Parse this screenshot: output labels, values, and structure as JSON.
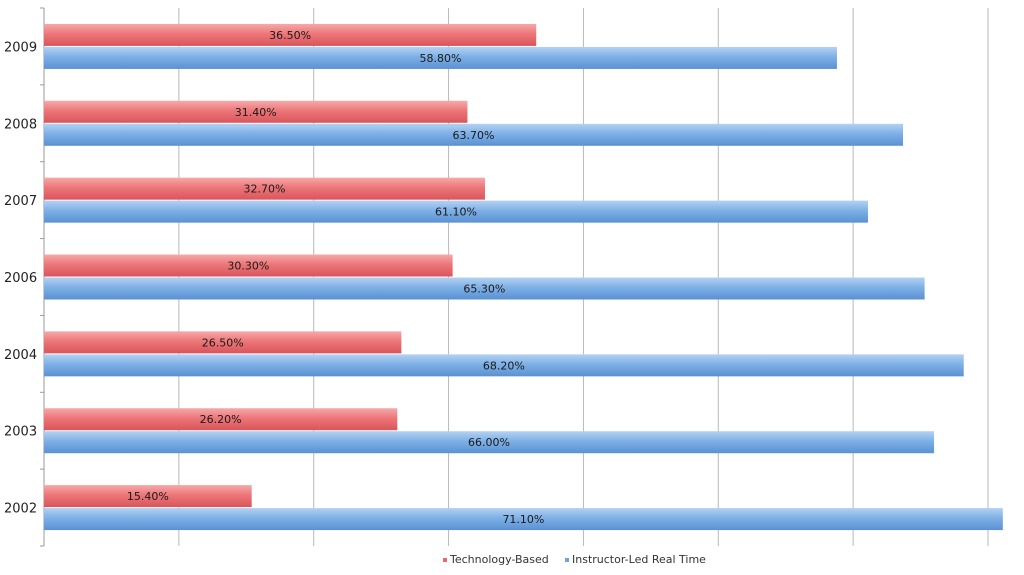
{
  "chart_data": {
    "type": "bar",
    "orientation": "horizontal",
    "categories": [
      "2009",
      "2008",
      "2007",
      "2006",
      "2004",
      "2003",
      "2002"
    ],
    "series": [
      {
        "name": "Technology-Based",
        "values": [
          36.5,
          31.4,
          32.7,
          30.3,
          26.5,
          26.2,
          15.4
        ],
        "labels": [
          "36.50%",
          "31.40%",
          "32.70%",
          "30.30%",
          "26.50%",
          "26.20%",
          "15.40%"
        ],
        "color": "#e8676b"
      },
      {
        "name": "Instructor-Led Real Time",
        "values": [
          58.8,
          63.7,
          61.1,
          65.3,
          68.2,
          66.0,
          71.1
        ],
        "labels": [
          "58.80%",
          "63.70%",
          "61.10%",
          "65.30%",
          "68.20%",
          "66.00%",
          "71.10%"
        ],
        "color": "#6ea3de"
      }
    ],
    "xlim": [
      0,
      70
    ],
    "grid": true,
    "legend": "bottom"
  }
}
